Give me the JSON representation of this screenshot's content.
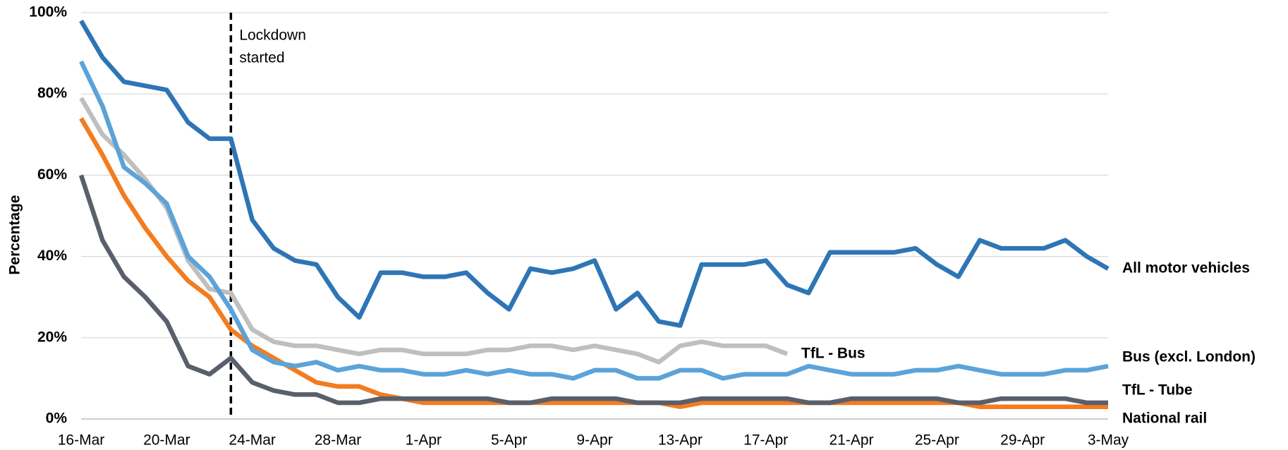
{
  "chart_data": {
    "type": "line",
    "y_label": "Percentage",
    "annotation": [
      "Lockdown",
      "started"
    ],
    "categories": [
      "16-Mar",
      null,
      null,
      null,
      "20-Mar",
      null,
      null,
      null,
      "24-Mar",
      null,
      null,
      null,
      "28-Mar",
      null,
      null,
      null,
      "1-Apr",
      null,
      null,
      null,
      "5-Apr",
      null,
      null,
      null,
      "9-Apr",
      null,
      null,
      null,
      "13-Apr",
      null,
      null,
      null,
      "17-Apr",
      null,
      null,
      null,
      "21-Apr",
      null,
      null,
      null,
      "25-Apr",
      null,
      null,
      null,
      "29-Apr",
      null,
      null,
      null,
      "3-May"
    ],
    "series": [
      {
        "name": "All motor vehicles",
        "color": "#2e75b6",
        "values": [
          98,
          89,
          83,
          82,
          81,
          73,
          69,
          69,
          49,
          42,
          39,
          38,
          30,
          25,
          36,
          36,
          35,
          35,
          36,
          31,
          27,
          37,
          36,
          37,
          39,
          27,
          31,
          24,
          23,
          38,
          38,
          38,
          39,
          33,
          31,
          41,
          41,
          41,
          41,
          42,
          38,
          35,
          44,
          42,
          42,
          42,
          44,
          40,
          37
        ]
      },
      {
        "name": "Bus (excl. London)",
        "color": "#5ba3d9",
        "values": [
          88,
          77,
          62,
          58,
          53,
          40,
          35,
          27,
          17,
          14,
          13,
          14,
          12,
          13,
          12,
          12,
          11,
          11,
          12,
          11,
          12,
          11,
          11,
          10,
          12,
          12,
          10,
          10,
          12,
          12,
          10,
          11,
          11,
          11,
          13,
          12,
          11,
          11,
          11,
          12,
          12,
          13,
          12,
          11,
          11,
          11,
          12,
          12,
          13
        ]
      },
      {
        "name": "TfL - Bus",
        "color": "#bfbfbf",
        "values": [
          79,
          70,
          65,
          59,
          52,
          39,
          32,
          31,
          22,
          19,
          18,
          18,
          17,
          16,
          17,
          17,
          16,
          16,
          16,
          17,
          17,
          18,
          18,
          17,
          18,
          17,
          16,
          14,
          18,
          19,
          18,
          18,
          18,
          16,
          null,
          null,
          null,
          null,
          null,
          null,
          null,
          null,
          null,
          null,
          null,
          null,
          null,
          null,
          null
        ]
      },
      {
        "name": "TfL - Tube",
        "color": "#595f6b",
        "values": [
          60,
          44,
          35,
          30,
          24,
          13,
          11,
          15,
          9,
          7,
          6,
          6,
          4,
          4,
          5,
          5,
          5,
          5,
          5,
          5,
          4,
          4,
          5,
          5,
          5,
          5,
          4,
          4,
          4,
          5,
          5,
          5,
          5,
          5,
          4,
          4,
          5,
          5,
          5,
          5,
          5,
          4,
          4,
          5,
          5,
          5,
          5,
          4,
          4
        ]
      },
      {
        "name": "National rail",
        "color": "#f37c20",
        "values": [
          74,
          65,
          55,
          47,
          40,
          34,
          30,
          22,
          18,
          15,
          12,
          9,
          8,
          8,
          6,
          5,
          4,
          4,
          4,
          4,
          4,
          4,
          4,
          4,
          4,
          4,
          4,
          4,
          3,
          4,
          4,
          4,
          4,
          4,
          4,
          4,
          4,
          4,
          4,
          4,
          4,
          4,
          3,
          3,
          3,
          3,
          3,
          3,
          3
        ]
      }
    ],
    "ylim": [
      0,
      100
    ],
    "yticks": [
      {
        "value": 0,
        "label": "0%"
      },
      {
        "value": 20,
        "label": "20%"
      },
      {
        "value": 40,
        "label": "40%"
      },
      {
        "value": 60,
        "label": "60%"
      },
      {
        "value": 80,
        "label": "80%"
      },
      {
        "value": 100,
        "label": "100%"
      }
    ],
    "grid": true
  }
}
